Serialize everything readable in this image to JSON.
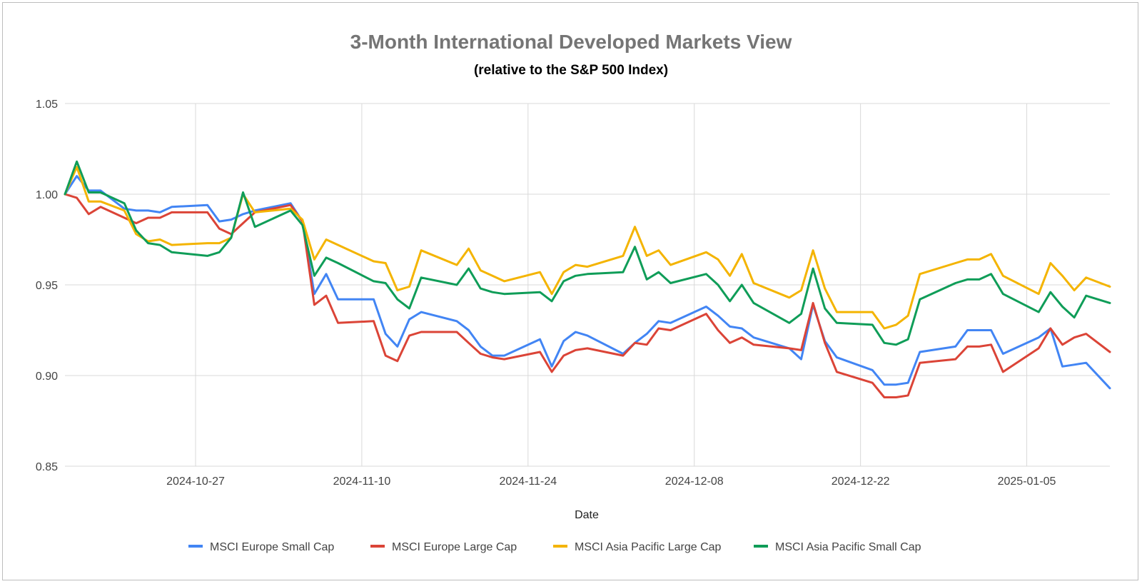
{
  "chart_data": {
    "type": "line",
    "title": "3-Month International Developed Markets View",
    "subtitle": "(relative to the S&P 500 Index)",
    "xlabel": "Date",
    "ylabel": "",
    "ylim": [
      0.85,
      1.05
    ],
    "y_ticks": [
      "0.85",
      "0.90",
      "0.95",
      "1.00",
      "1.05"
    ],
    "y_tick_values": [
      0.85,
      0.9,
      0.95,
      1.0,
      1.05
    ],
    "x_range": [
      "2024-10-16",
      "2025-01-12"
    ],
    "x_ticks": [
      "2024-10-27",
      "2024-11-10",
      "2024-11-24",
      "2024-12-08",
      "2024-12-22",
      "2025-01-05"
    ],
    "grid": true,
    "legend_position": "bottom",
    "x": [
      "2024-10-16",
      "2024-10-17",
      "2024-10-18",
      "2024-10-19",
      "2024-10-21",
      "2024-10-22",
      "2024-10-23",
      "2024-10-24",
      "2024-10-25",
      "2024-10-28",
      "2024-10-29",
      "2024-10-30",
      "2024-10-31",
      "2024-11-01",
      "2024-11-04",
      "2024-11-05",
      "2024-11-06",
      "2024-11-07",
      "2024-11-08",
      "2024-11-11",
      "2024-11-12",
      "2024-11-13",
      "2024-11-14",
      "2024-11-15",
      "2024-11-18",
      "2024-11-19",
      "2024-11-20",
      "2024-11-21",
      "2024-11-22",
      "2024-11-25",
      "2024-11-26",
      "2024-11-27",
      "2024-11-28",
      "2024-11-29",
      "2024-12-02",
      "2024-12-03",
      "2024-12-04",
      "2024-12-05",
      "2024-12-06",
      "2024-12-09",
      "2024-12-10",
      "2024-12-11",
      "2024-12-12",
      "2024-12-13",
      "2024-12-16",
      "2024-12-17",
      "2024-12-18",
      "2024-12-19",
      "2024-12-20",
      "2024-12-23",
      "2024-12-24",
      "2024-12-25",
      "2024-12-26",
      "2024-12-27",
      "2024-12-30",
      "2024-12-31",
      "2025-01-01",
      "2025-01-02",
      "2025-01-03",
      "2025-01-06",
      "2025-01-07",
      "2025-01-08",
      "2025-01-09",
      "2025-01-10",
      "2025-01-12"
    ],
    "series": [
      {
        "name": "MSCI Europe Small Cap",
        "color": "#4285f4",
        "values": [
          1.0,
          1.01,
          1.002,
          1.002,
          0.992,
          0.991,
          0.991,
          0.99,
          0.993,
          0.994,
          0.985,
          0.986,
          0.989,
          0.991,
          0.995,
          0.985,
          0.945,
          0.956,
          0.942,
          0.942,
          0.923,
          0.916,
          0.931,
          0.935,
          0.93,
          0.925,
          0.916,
          0.911,
          0.911,
          0.92,
          0.905,
          0.919,
          0.924,
          0.922,
          0.912,
          0.918,
          0.923,
          0.93,
          0.929,
          0.938,
          0.933,
          0.927,
          0.926,
          0.921,
          0.915,
          0.909,
          0.939,
          0.919,
          0.91,
          0.903,
          0.895,
          0.895,
          0.896,
          0.913,
          0.916,
          0.925,
          0.925,
          0.925,
          0.912,
          0.921,
          0.926,
          0.905,
          0.906,
          0.907,
          0.893
        ]
      },
      {
        "name": "MSCI Europe Large Cap",
        "color": "#db4437",
        "values": [
          1.0,
          0.998,
          0.989,
          0.993,
          0.987,
          0.984,
          0.987,
          0.987,
          0.99,
          0.99,
          0.981,
          0.978,
          0.984,
          0.99,
          0.994,
          0.985,
          0.939,
          0.944,
          0.929,
          0.93,
          0.911,
          0.908,
          0.922,
          0.924,
          0.924,
          0.918,
          0.912,
          0.91,
          0.909,
          0.913,
          0.902,
          0.911,
          0.914,
          0.915,
          0.911,
          0.918,
          0.917,
          0.926,
          0.925,
          0.934,
          0.925,
          0.918,
          0.921,
          0.917,
          0.915,
          0.914,
          0.94,
          0.918,
          0.902,
          0.896,
          0.888,
          0.888,
          0.889,
          0.907,
          0.909,
          0.916,
          0.916,
          0.917,
          0.902,
          0.915,
          0.926,
          0.917,
          0.921,
          0.923,
          0.913
        ]
      },
      {
        "name": "MSCI Asia Pacific Large Cap",
        "color": "#f4b400",
        "values": [
          1.0,
          1.015,
          0.996,
          0.996,
          0.991,
          0.978,
          0.974,
          0.975,
          0.972,
          0.973,
          0.973,
          0.976,
          1.0,
          0.99,
          0.992,
          0.986,
          0.964,
          0.975,
          0.972,
          0.963,
          0.962,
          0.947,
          0.949,
          0.969,
          0.961,
          0.97,
          0.958,
          0.955,
          0.952,
          0.957,
          0.945,
          0.957,
          0.961,
          0.96,
          0.966,
          0.982,
          0.966,
          0.969,
          0.961,
          0.968,
          0.964,
          0.955,
          0.967,
          0.951,
          0.943,
          0.947,
          0.969,
          0.948,
          0.935,
          0.935,
          0.926,
          0.928,
          0.933,
          0.956,
          0.962,
          0.964,
          0.964,
          0.967,
          0.955,
          0.945,
          0.962,
          0.955,
          0.947,
          0.954,
          0.949
        ]
      },
      {
        "name": "MSCI Asia Pacific Small Cap",
        "color": "#0f9d58",
        "values": [
          1.0,
          1.018,
          1.001,
          1.001,
          0.995,
          0.98,
          0.973,
          0.972,
          0.968,
          0.966,
          0.968,
          0.976,
          1.001,
          0.982,
          0.991,
          0.983,
          0.955,
          0.965,
          0.962,
          0.952,
          0.951,
          0.942,
          0.937,
          0.954,
          0.95,
          0.959,
          0.948,
          0.946,
          0.945,
          0.946,
          0.941,
          0.952,
          0.955,
          0.956,
          0.957,
          0.971,
          0.953,
          0.957,
          0.951,
          0.956,
          0.95,
          0.941,
          0.95,
          0.94,
          0.929,
          0.934,
          0.959,
          0.937,
          0.929,
          0.928,
          0.918,
          0.917,
          0.92,
          0.942,
          0.951,
          0.953,
          0.953,
          0.956,
          0.945,
          0.935,
          0.946,
          0.938,
          0.932,
          0.944,
          0.94
        ]
      }
    ]
  }
}
